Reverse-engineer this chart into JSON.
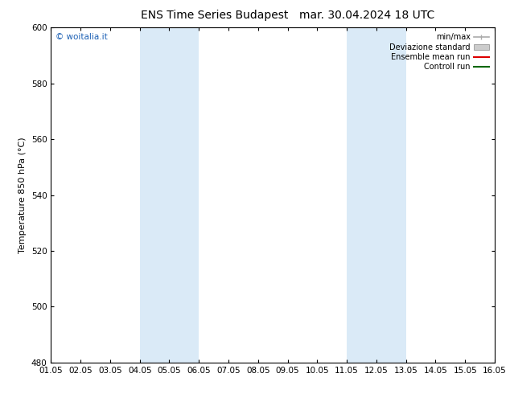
{
  "title_left": "ENS Time Series Budapest",
  "title_right": "mar. 30.04.2024 18 UTC",
  "ylabel": "Temperature 850 hPa (°C)",
  "ylim": [
    480,
    600
  ],
  "yticks": [
    480,
    500,
    520,
    540,
    560,
    580,
    600
  ],
  "xtick_labels": [
    "01.05",
    "02.05",
    "03.05",
    "04.05",
    "05.05",
    "06.05",
    "07.05",
    "08.05",
    "09.05",
    "10.05",
    "11.05",
    "12.05",
    "13.05",
    "14.05",
    "15.05",
    "16.05"
  ],
  "shade_bands": [
    {
      "xmin": 3.0,
      "xmax": 5.0
    },
    {
      "xmin": 10.0,
      "xmax": 12.0
    }
  ],
  "shade_color": "#daeaf7",
  "watermark": "© woitalia.it",
  "watermark_color": "#1a5fb4",
  "legend_items": [
    {
      "label": "min/max",
      "color": "#aaaaaa",
      "type": "minmax"
    },
    {
      "label": "Deviazione standard",
      "color": "#cccccc",
      "type": "std"
    },
    {
      "label": "Ensemble mean run",
      "color": "#dd0000",
      "type": "line"
    },
    {
      "label": "Controll run",
      "color": "#006600",
      "type": "line"
    }
  ],
  "bg_color": "#ffffff",
  "title_fontsize": 10,
  "axis_label_fontsize": 8,
  "tick_fontsize": 7.5,
  "legend_fontsize": 7
}
